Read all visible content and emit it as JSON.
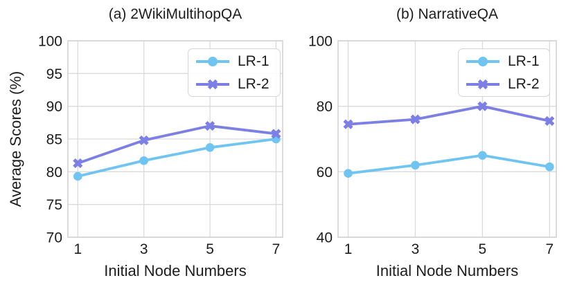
{
  "style": {
    "grid_color": "#dadada",
    "spine_color": "#cfcfcf",
    "text_color": "#1d1d1d",
    "lr1_color": "#6fc4f1",
    "lr2_color": "#7c7fe4",
    "background": "#ffffff"
  },
  "chart_data": [
    {
      "type": "line",
      "title": "(a) 2WikiMultihopQA",
      "xlabel": "Initial Node Numbers",
      "ylabel": "Average Scores (%)",
      "x": [
        1,
        3,
        5,
        7
      ],
      "xticks": [
        "1",
        "3",
        "5",
        "7"
      ],
      "yticks": [
        70,
        75,
        80,
        85,
        90,
        95,
        100
      ],
      "xlim": [
        0.7,
        7.2
      ],
      "ylim": [
        70,
        100
      ],
      "grid": true,
      "legend_position": "upper right",
      "series": [
        {
          "name": "LR-1",
          "marker": "circle",
          "color": "#6fc4f1",
          "values": [
            79.3,
            81.7,
            83.7,
            85.0
          ]
        },
        {
          "name": "LR-2",
          "marker": "X",
          "color": "#7c7fe4",
          "values": [
            81.3,
            84.8,
            87.0,
            85.8
          ]
        }
      ]
    },
    {
      "type": "line",
      "title": "(b) NarrativeQA",
      "xlabel": "Initial Node Numbers",
      "ylabel": "",
      "x": [
        1,
        3,
        5,
        7
      ],
      "xticks": [
        "1",
        "3",
        "5",
        "7"
      ],
      "yticks": [
        40,
        60,
        80,
        100
      ],
      "xlim": [
        0.7,
        7.2
      ],
      "ylim": [
        40,
        100
      ],
      "grid": true,
      "legend_position": "upper right",
      "series": [
        {
          "name": "LR-1",
          "marker": "circle",
          "color": "#6fc4f1",
          "values": [
            59.5,
            62.0,
            65.0,
            61.5
          ]
        },
        {
          "name": "LR-2",
          "marker": "X",
          "color": "#7c7fe4",
          "values": [
            74.5,
            76.0,
            80.0,
            75.5
          ]
        }
      ]
    }
  ]
}
